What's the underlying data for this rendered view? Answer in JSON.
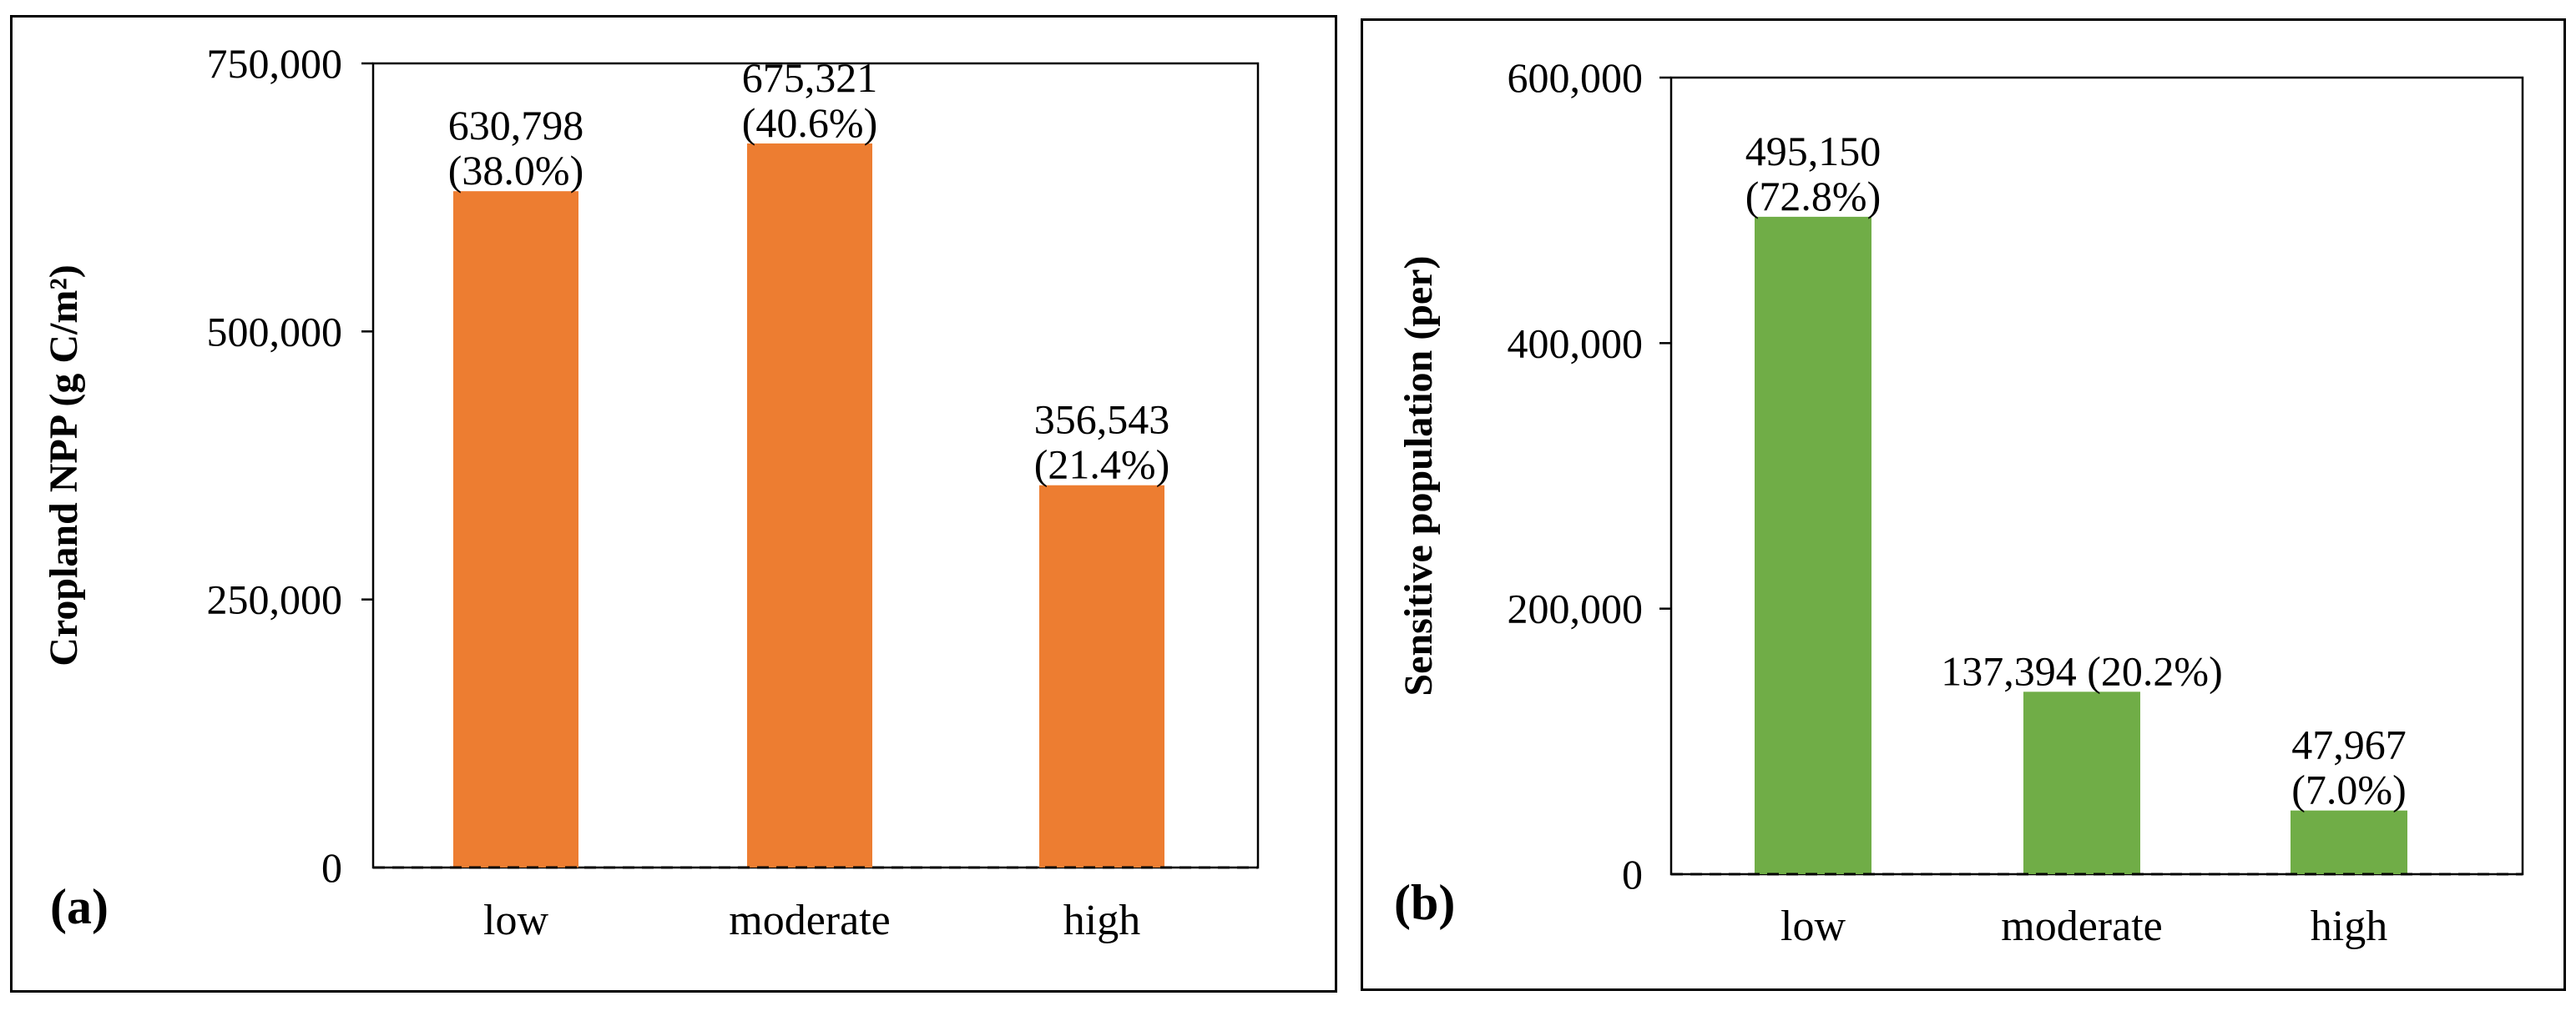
{
  "chart_data": [
    {
      "panel_label": "(a)",
      "type": "bar",
      "categories": [
        "low",
        "moderate",
        "high"
      ],
      "values": [
        630798,
        675321,
        356543
      ],
      "data_labels": [
        [
          "630,798",
          "(38.0%)"
        ],
        [
          "675,321",
          "(40.6%)"
        ],
        [
          "356,543",
          "(21.4%)"
        ]
      ],
      "ylabel": "Cropland NPP (g C/m²)",
      "ylim": [
        0,
        750000
      ],
      "yticks": [
        0,
        250000,
        500000,
        750000
      ],
      "ytick_labels": [
        "0",
        "250,000",
        "500,000",
        "750,000"
      ],
      "bar_color": "#ED7D31",
      "grid": false
    },
    {
      "panel_label": "(b)",
      "type": "bar",
      "categories": [
        "low",
        "moderate",
        "high"
      ],
      "values": [
        495150,
        137394,
        47967
      ],
      "data_labels": [
        [
          "495,150",
          "(72.8%)"
        ],
        [
          "137,394 (20.2%)"
        ],
        [
          "47,967",
          "(7.0%)"
        ]
      ],
      "ylabel": "Sensitive population (per)",
      "ylim": [
        0,
        600000
      ],
      "yticks": [
        0,
        200000,
        400000,
        600000
      ],
      "ytick_labels": [
        "0",
        "200,000",
        "400,000",
        "600,000"
      ],
      "bar_color": "#70AD47",
      "grid": false
    }
  ]
}
